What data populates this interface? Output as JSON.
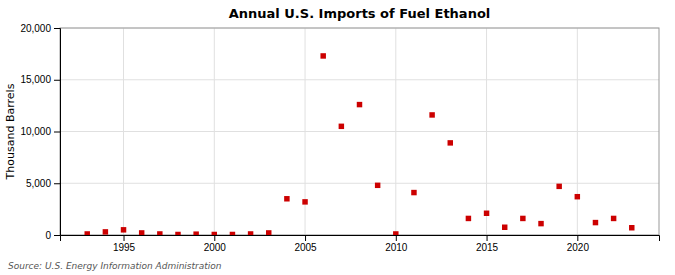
{
  "chart_data": {
    "type": "scatter",
    "title": "Annual U.S. Imports of Fuel Ethanol",
    "ylabel": "Thousand Barrels",
    "annotations": [
      "Source: U.S. Energy Information Administration"
    ],
    "x": [
      1993,
      1994,
      1995,
      1996,
      1997,
      1998,
      1999,
      2000,
      2001,
      2002,
      2003,
      2004,
      2005,
      2006,
      2007,
      2008,
      2009,
      2010,
      2011,
      2012,
      2013,
      2014,
      2015,
      2016,
      2017,
      2018,
      2019,
      2020,
      2021,
      2022,
      2023
    ],
    "values": [
      100,
      300,
      500,
      200,
      100,
      50,
      80,
      50,
      50,
      100,
      200,
      3500,
      3200,
      17300,
      10500,
      12600,
      4800,
      100,
      4100,
      11600,
      8900,
      1600,
      2100,
      750,
      1600,
      1100,
      4700,
      3700,
      1200,
      1600,
      700
    ],
    "color": "#cc0000",
    "marker": "square",
    "xlim": [
      1991.5,
      2024.5
    ],
    "ylim": [
      0,
      20000
    ],
    "xticks": [
      1995,
      2000,
      2005,
      2010,
      2015,
      2020
    ],
    "yticks": [
      0,
      {
        "value": 5000,
        "label": "5,000"
      },
      {
        "value": 10000,
        "label": "10,000"
      },
      {
        "value": 15000,
        "label": "15,000"
      },
      {
        "value": 20000,
        "label": "20,000"
      }
    ],
    "grid": true
  }
}
